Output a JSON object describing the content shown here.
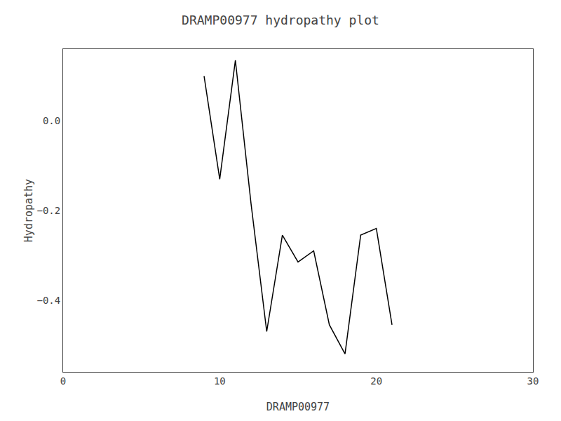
{
  "chart_data": {
    "type": "line",
    "title": "DRAMP00977 hydropathy plot",
    "xlabel": "DRAMP00977",
    "ylabel": "Hydropathy",
    "x": [
      9,
      10,
      11,
      12,
      13,
      14,
      15,
      16,
      17,
      18,
      19,
      20,
      21
    ],
    "values": [
      0.1,
      -0.13,
      0.135,
      -0.185,
      -0.47,
      -0.255,
      -0.315,
      -0.29,
      -0.455,
      -0.52,
      -0.255,
      -0.24,
      -0.455
    ],
    "color": "#000000",
    "xlim": [
      0,
      30
    ],
    "ylim": [
      -0.56,
      0.16
    ],
    "xticks": [
      0,
      10,
      20,
      30
    ],
    "yticks": [
      {
        "value": 0.0,
        "label": "0.0"
      },
      {
        "value": -0.2,
        "label": "−0.2"
      },
      {
        "value": -0.4,
        "label": "−0.4"
      }
    ],
    "grid": false
  }
}
